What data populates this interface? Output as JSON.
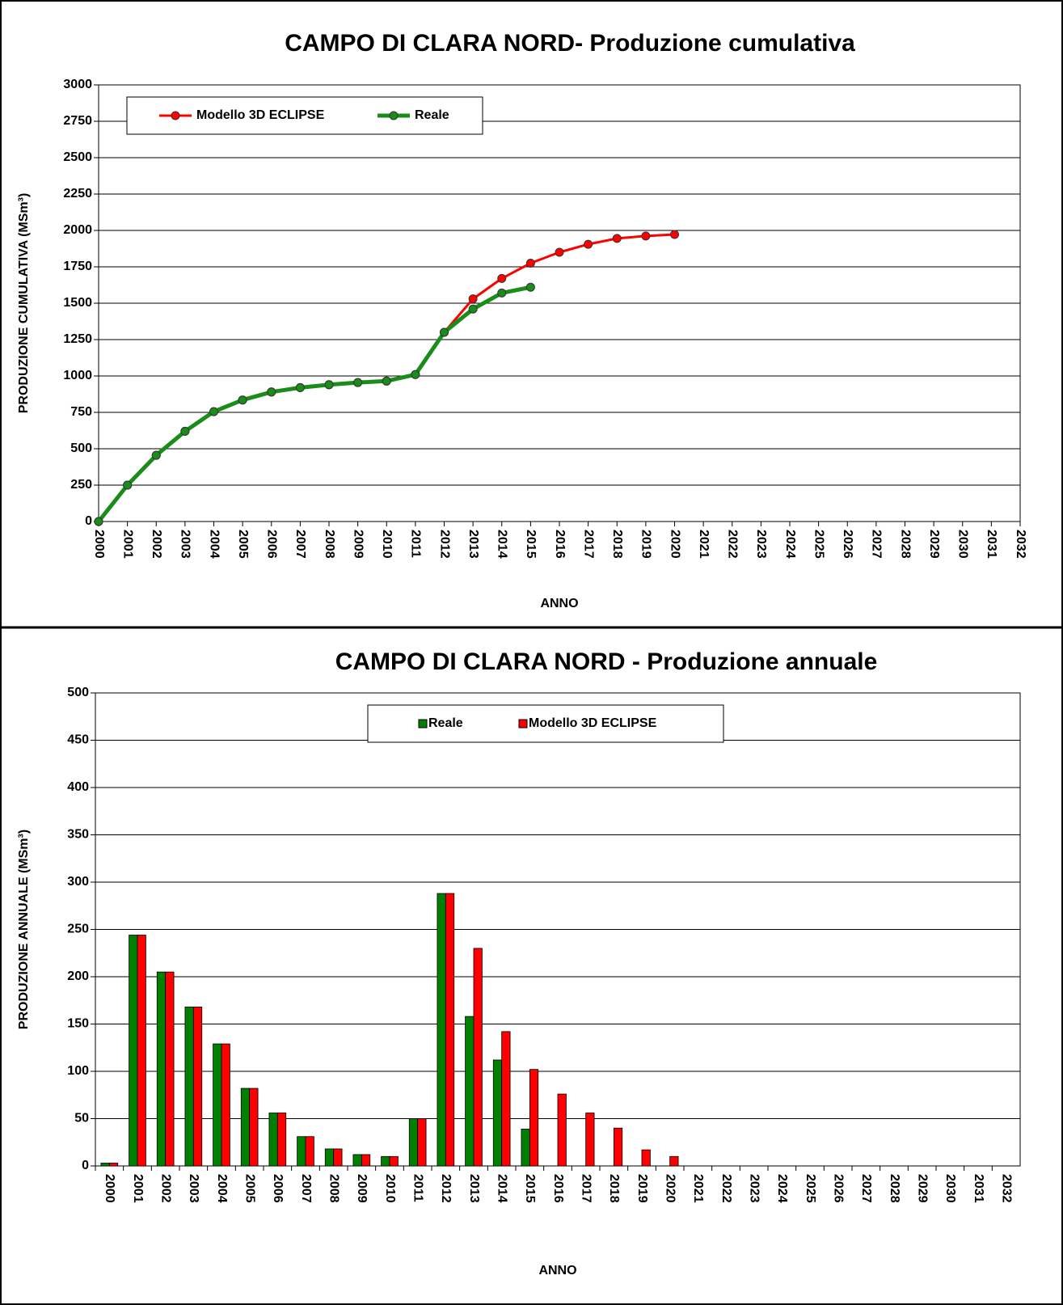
{
  "chart_data": [
    {
      "type": "line",
      "title": "CAMPO DI CLARA NORD- Produzione cumulativa",
      "x_label": "ANNO",
      "y_label": "PRODUZIONE CUMULATIVA (MSm³)",
      "x": [
        2000,
        2001,
        2002,
        2003,
        2004,
        2005,
        2006,
        2007,
        2008,
        2009,
        2010,
        2011,
        2012,
        2013,
        2014,
        2015,
        2016,
        2017,
        2018,
        2019,
        2020
      ],
      "series": [
        {
          "name": "Modello 3D ECLIPSE",
          "color": "#ff0000",
          "values": [
            0,
            250,
            455,
            620,
            755,
            835,
            890,
            920,
            940,
            955,
            965,
            1010,
            1300,
            1530,
            1670,
            1775,
            1850,
            1905,
            1945,
            1962,
            1972
          ]
        },
        {
          "name": "Reale",
          "color": "#1a8c1a",
          "values": [
            0,
            250,
            455,
            620,
            755,
            835,
            890,
            920,
            940,
            955,
            965,
            1010,
            1300,
            1460,
            1570,
            1610,
            null,
            null,
            null,
            null,
            null
          ]
        }
      ],
      "xlim": [
        2000,
        2032
      ],
      "xticks": [
        2000,
        2001,
        2002,
        2003,
        2004,
        2005,
        2006,
        2007,
        2008,
        2009,
        2010,
        2011,
        2012,
        2013,
        2014,
        2015,
        2016,
        2017,
        2018,
        2019,
        2020,
        2021,
        2022,
        2023,
        2024,
        2025,
        2026,
        2027,
        2028,
        2029,
        2030,
        2031,
        2032
      ],
      "ylim": [
        0,
        3000
      ],
      "yticks": [
        0,
        250,
        500,
        750,
        1000,
        1250,
        1500,
        1750,
        2000,
        2250,
        2500,
        2750,
        3000
      ],
      "grid": true,
      "legend": "top-left"
    },
    {
      "type": "bar",
      "title": "CAMPO DI CLARA NORD - Produzione annuale",
      "x_label": "ANNO",
      "y_label": "PRODUZIONE ANNUALE (MSm³)",
      "categories": [
        "2000",
        "2001",
        "2002",
        "2003",
        "2004",
        "2005",
        "2006",
        "2007",
        "2008",
        "2009",
        "2010",
        "2011",
        "2012",
        "2013",
        "2014",
        "2015",
        "2016",
        "2017",
        "2018",
        "2019",
        "2020",
        "2021",
        "2022",
        "2023",
        "2024",
        "2025",
        "2026",
        "2027",
        "2028",
        "2029",
        "2030",
        "2031",
        "2032"
      ],
      "series": [
        {
          "name": "Reale",
          "color": "#008000",
          "values": [
            3,
            244,
            205,
            168,
            129,
            82,
            56,
            31,
            18,
            12,
            10,
            50,
            288,
            158,
            112,
            39,
            null,
            null,
            null,
            null,
            null,
            null,
            null,
            null,
            null,
            null,
            null,
            null,
            null,
            null,
            null,
            null,
            null
          ]
        },
        {
          "name": "Modello 3D ECLIPSE",
          "color": "#ff0000",
          "values": [
            3,
            244,
            205,
            168,
            129,
            82,
            56,
            31,
            18,
            12,
            10,
            50,
            288,
            230,
            142,
            102,
            76,
            56,
            40,
            17,
            10,
            null,
            null,
            null,
            null,
            null,
            null,
            null,
            null,
            null,
            null,
            null,
            null
          ]
        }
      ],
      "ylim": [
        0,
        500
      ],
      "yticks": [
        0,
        50,
        100,
        150,
        200,
        250,
        300,
        350,
        400,
        450,
        500
      ],
      "grid": true,
      "legend": "top-center"
    }
  ]
}
